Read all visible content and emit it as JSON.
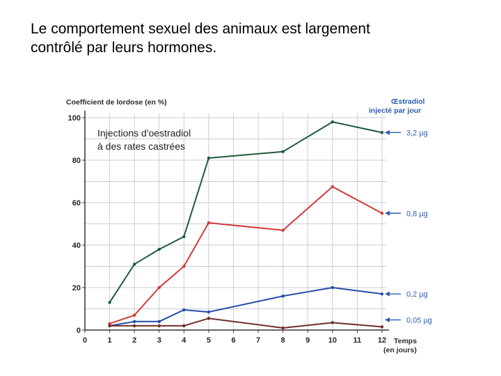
{
  "slide": {
    "title_line1": "Le comportement  sexuel des animaux est largement",
    "title_line2": "contrôlé par leurs hormones."
  },
  "chart_data": {
    "type": "line",
    "ylabel": "Coefficient de lordose (en %)",
    "xlabel_line1": "Temps",
    "xlabel_line2": "(en jours)",
    "annotation_line1": "Injections d'oestradiol",
    "annotation_line2": "à des rates castrées",
    "legend_title_line1": "Œstradiol",
    "legend_title_line2": "injecté par jour",
    "xlim": [
      0,
      12
    ],
    "ylim": [
      0,
      100
    ],
    "x_ticks": [
      "0",
      "1",
      "2",
      "3",
      "4",
      "5",
      "6",
      "7",
      "8",
      "9",
      "10",
      "11",
      "12"
    ],
    "y_ticks": [
      "0",
      "20",
      "40",
      "60",
      "80",
      "100"
    ],
    "grid": true,
    "x": [
      1,
      2,
      3,
      4,
      5,
      8,
      10,
      12
    ],
    "series": [
      {
        "name": "3,2 µg",
        "color": "#1f5a3a",
        "values": [
          13,
          31,
          38,
          44,
          81,
          84,
          98,
          93
        ]
      },
      {
        "name": "0,8 µg",
        "color": "#d23a3a",
        "values": [
          3,
          7,
          20,
          30,
          50.5,
          47,
          67.5,
          55
        ]
      },
      {
        "name": "0,2 µg",
        "color": "#2448a8",
        "values": [
          2,
          4,
          4,
          9.5,
          8.5,
          16,
          20,
          17
        ]
      },
      {
        "name": "0,05 µg",
        "color": "#6e2f2a",
        "values": [
          2,
          2,
          2,
          2,
          5.5,
          1,
          3.5,
          1.5
        ]
      }
    ]
  }
}
